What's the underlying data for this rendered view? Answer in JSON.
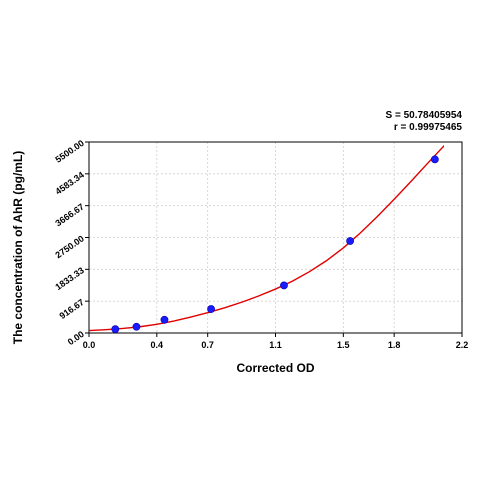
{
  "stats": {
    "s_text": "S = 50.78405954",
    "r_text": "r = 0.99975465"
  },
  "chart_data": {
    "type": "scatter",
    "title": "",
    "xlabel": "Corrected OD",
    "ylabel": "The concentration of AhR (pg/mL)",
    "xlim": [
      0,
      2.2
    ],
    "ylim": [
      0,
      5500
    ],
    "x_ticks": [
      0.0,
      0.4,
      0.7,
      1.1,
      1.5,
      1.8,
      2.2
    ],
    "x_tick_labels": [
      "0.0",
      "0.4",
      "0.7",
      "1.1",
      "1.5",
      "1.8",
      "2.2"
    ],
    "y_ticks": [
      0,
      916.67,
      1833.33,
      2750,
      3666.67,
      4583.34,
      5500
    ],
    "y_tick_labels": [
      "0.00",
      "916.67",
      "1833.33",
      "2750.00",
      "3666.67",
      "4583.34",
      "5500.00"
    ],
    "grid": true,
    "series": [
      {
        "type": "scatter",
        "color": "#1a1aff",
        "x": [
          0.155,
          0.28,
          0.445,
          0.72,
          1.15,
          1.54,
          2.04
        ],
        "y": [
          110,
          180,
          380,
          690,
          1370,
          2650,
          5000
        ]
      },
      {
        "type": "line",
        "color": "#e00000",
        "x": [
          0.0,
          0.1,
          0.2,
          0.3,
          0.4,
          0.5,
          0.6,
          0.7,
          0.8,
          0.9,
          1.0,
          1.1,
          1.2,
          1.3,
          1.4,
          1.5,
          1.6,
          1.7,
          1.8,
          1.9,
          2.0,
          2.1,
          2.2
        ],
        "y": [
          70,
          95,
          130,
          180,
          250,
          345,
          460,
          585,
          725,
          885,
          1065,
          1265,
          1495,
          1765,
          2080,
          2450,
          2880,
          3350,
          3850,
          4370,
          4900,
          5420,
          5800
        ]
      }
    ]
  }
}
